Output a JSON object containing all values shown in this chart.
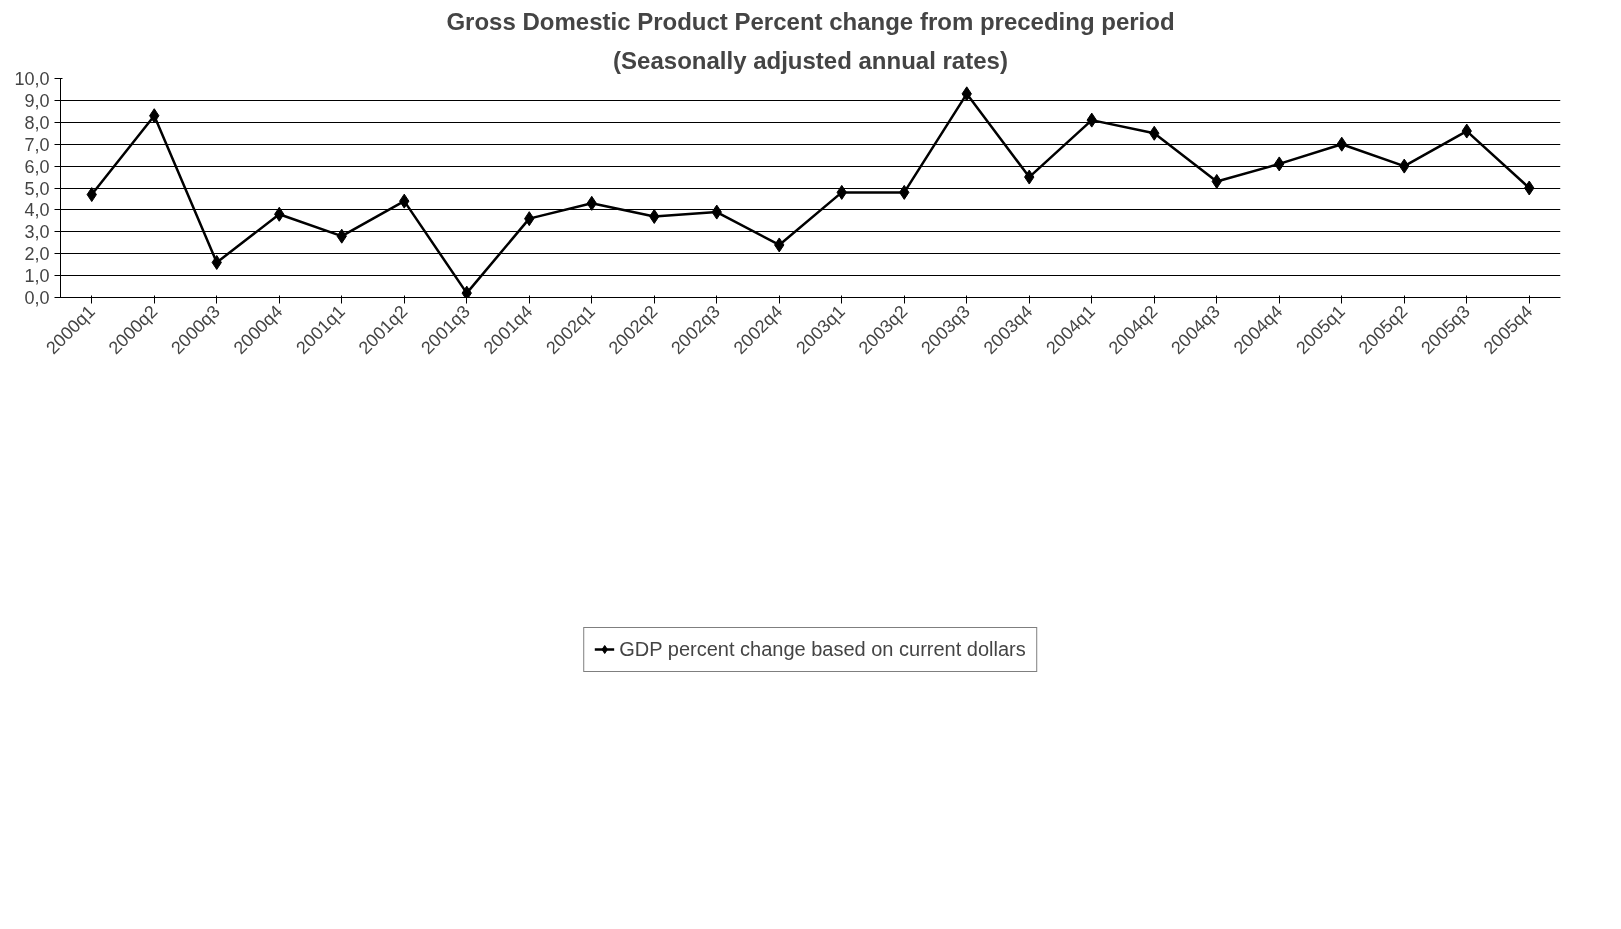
{
  "chart_data": {
    "type": "line",
    "title": "Gross Domestic Product Percent change from preceding period",
    "subtitle": "(Seasonally adjusted annual rates)",
    "categories": [
      "2000q1",
      "2000q2",
      "2000q3",
      "2000q4",
      "2001q1",
      "2001q2",
      "2001q3",
      "2001q4",
      "2002q1",
      "2002q2",
      "2002q3",
      "2002q4",
      "2003q1",
      "2003q2",
      "2003q3",
      "2003q4",
      "2004q1",
      "2004q2",
      "2004q3",
      "2004q4",
      "2005q1",
      "2005q2",
      "2005q3",
      "2005q4"
    ],
    "series": [
      {
        "name": "GDP percent change based on current dollars",
        "color": "#000000",
        "values": [
          4.7,
          8.3,
          1.6,
          3.8,
          2.8,
          4.4,
          0.2,
          3.6,
          4.3,
          3.7,
          3.9,
          2.4,
          4.8,
          4.8,
          9.3,
          5.5,
          8.1,
          7.5,
          5.3,
          6.1,
          7.0,
          6.0,
          7.6,
          5.0
        ]
      }
    ],
    "ylim": [
      0,
      10
    ],
    "yticks": [
      {
        "value": 0,
        "label": "0,0"
      },
      {
        "value": 1,
        "label": "1,0"
      },
      {
        "value": 2,
        "label": "2,0"
      },
      {
        "value": 3,
        "label": "3,0"
      },
      {
        "value": 4,
        "label": "4,0"
      },
      {
        "value": 5,
        "label": "5,0"
      },
      {
        "value": 6,
        "label": "6,0"
      },
      {
        "value": 7,
        "label": "7,0"
      },
      {
        "value": 8,
        "label": "8,0"
      },
      {
        "value": 9,
        "label": "9,0"
      },
      {
        "value": 10,
        "label": "10,0"
      }
    ],
    "grid": "y",
    "legend": "bottom",
    "marker": "diamond",
    "line_style": "solid"
  }
}
